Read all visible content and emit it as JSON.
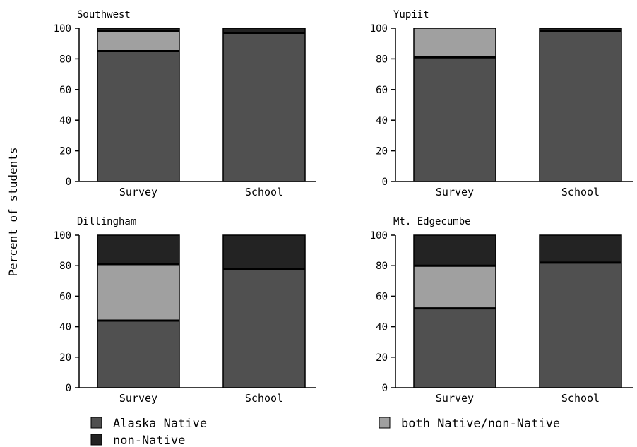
{
  "chart_data": {
    "type": "bar",
    "stacked": true,
    "ylabel": "Percent of students",
    "ylim": [
      0,
      100
    ],
    "yticks": [
      "0",
      "20",
      "40",
      "60",
      "80",
      "100"
    ],
    "categories": [
      "Survey",
      "School"
    ],
    "legend": {
      "placement": "bottom",
      "entries": [
        {
          "name": "Alaska Native",
          "color": "#505050"
        },
        {
          "name": "both Native/non-Native",
          "color": "#a0a0a0"
        },
        {
          "name": "non-Native",
          "color": "#232323"
        }
      ]
    },
    "panels": [
      {
        "title": "Southwest",
        "series": [
          {
            "name": "Alaska Native",
            "values": [
              85,
              97
            ]
          },
          {
            "name": "both Native/non-Native",
            "values": [
              13,
              0
            ]
          },
          {
            "name": "non-Native",
            "values": [
              2,
              3
            ]
          }
        ]
      },
      {
        "title": "Yupiit",
        "series": [
          {
            "name": "Alaska Native",
            "values": [
              81,
              98
            ]
          },
          {
            "name": "both Native/non-Native",
            "values": [
              19,
              0
            ]
          },
          {
            "name": "non-Native",
            "values": [
              0,
              2
            ]
          }
        ]
      },
      {
        "title": "Dillingham",
        "series": [
          {
            "name": "Alaska Native",
            "values": [
              44,
              78
            ]
          },
          {
            "name": "both Native/non-Native",
            "values": [
              37,
              0
            ]
          },
          {
            "name": "non-Native",
            "values": [
              19,
              22
            ]
          }
        ]
      },
      {
        "title": "Mt. Edgecumbe",
        "series": [
          {
            "name": "Alaska Native",
            "values": [
              52,
              82
            ]
          },
          {
            "name": "both Native/non-Native",
            "values": [
              28,
              0
            ]
          },
          {
            "name": "non-Native",
            "values": [
              20,
              18
            ]
          }
        ]
      }
    ]
  }
}
